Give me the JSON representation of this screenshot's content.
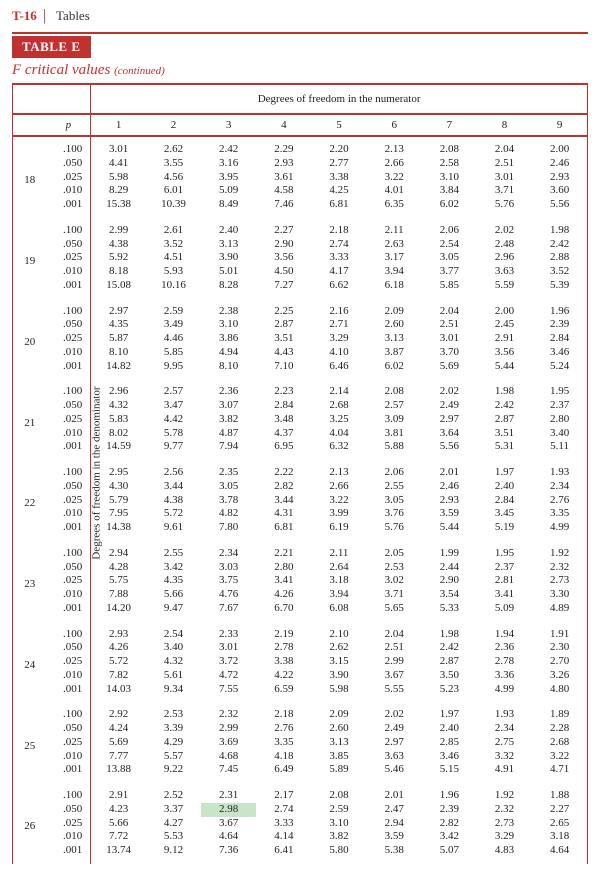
{
  "header": {
    "page_code": "T-16",
    "section": "Tables"
  },
  "table": {
    "pill": "TABLE E",
    "subtitle_main": "F critical values",
    "subtitle_cont": "(continued)",
    "numerator_label": "Degrees of freedom in the numerator",
    "denominator_label": "Degrees of freedom in the denominator",
    "p_header": "p",
    "num_cols": [
      "1",
      "2",
      "3",
      "4",
      "5",
      "6",
      "7",
      "8",
      "9"
    ],
    "p_levels": [
      ".100",
      ".050",
      ".025",
      ".010",
      ".001"
    ],
    "highlight": {
      "block_index": 8,
      "p_index": 1,
      "col_index": 2
    },
    "colors": {
      "accent": "#c0322f",
      "highlight": "#c7e6c9",
      "text": "#222222",
      "background": "#ffffff"
    },
    "blocks": [
      {
        "df_denom": "18",
        "rows": [
          [
            "3.01",
            "2.62",
            "2.42",
            "2.29",
            "2.20",
            "2.13",
            "2.08",
            "2.04",
            "2.00"
          ],
          [
            "4.41",
            "3.55",
            "3.16",
            "2.93",
            "2.77",
            "2.66",
            "2.58",
            "2.51",
            "2.46"
          ],
          [
            "5.98",
            "4.56",
            "3.95",
            "3.61",
            "3.38",
            "3.22",
            "3.10",
            "3.01",
            "2.93"
          ],
          [
            "8.29",
            "6.01",
            "5.09",
            "4.58",
            "4.25",
            "4.01",
            "3.84",
            "3.71",
            "3.60"
          ],
          [
            "15.38",
            "10.39",
            "8.49",
            "7.46",
            "6.81",
            "6.35",
            "6.02",
            "5.76",
            "5.56"
          ]
        ]
      },
      {
        "df_denom": "19",
        "rows": [
          [
            "2.99",
            "2.61",
            "2.40",
            "2.27",
            "2.18",
            "2.11",
            "2.06",
            "2.02",
            "1.98"
          ],
          [
            "4.38",
            "3.52",
            "3.13",
            "2.90",
            "2.74",
            "2.63",
            "2.54",
            "2.48",
            "2.42"
          ],
          [
            "5.92",
            "4.51",
            "3.90",
            "3.56",
            "3.33",
            "3.17",
            "3.05",
            "2.96",
            "2.88"
          ],
          [
            "8.18",
            "5.93",
            "5.01",
            "4.50",
            "4.17",
            "3.94",
            "3.77",
            "3.63",
            "3.52"
          ],
          [
            "15.08",
            "10.16",
            "8.28",
            "7.27",
            "6.62",
            "6.18",
            "5.85",
            "5.59",
            "5.39"
          ]
        ]
      },
      {
        "df_denom": "20",
        "rows": [
          [
            "2.97",
            "2.59",
            "2.38",
            "2.25",
            "2.16",
            "2.09",
            "2.04",
            "2.00",
            "1.96"
          ],
          [
            "4.35",
            "3.49",
            "3.10",
            "2.87",
            "2.71",
            "2.60",
            "2.51",
            "2.45",
            "2.39"
          ],
          [
            "5.87",
            "4.46",
            "3.86",
            "3.51",
            "3.29",
            "3.13",
            "3.01",
            "2.91",
            "2.84"
          ],
          [
            "8.10",
            "5.85",
            "4.94",
            "4.43",
            "4.10",
            "3.87",
            "3.70",
            "3.56",
            "3.46"
          ],
          [
            "14.82",
            "9.95",
            "8.10",
            "7.10",
            "6.46",
            "6.02",
            "5.69",
            "5.44",
            "5.24"
          ]
        ]
      },
      {
        "df_denom": "21",
        "rows": [
          [
            "2.96",
            "2.57",
            "2.36",
            "2.23",
            "2.14",
            "2.08",
            "2.02",
            "1.98",
            "1.95"
          ],
          [
            "4.32",
            "3.47",
            "3.07",
            "2.84",
            "2.68",
            "2.57",
            "2.49",
            "2.42",
            "2.37"
          ],
          [
            "5.83",
            "4.42",
            "3.82",
            "3.48",
            "3.25",
            "3.09",
            "2.97",
            "2.87",
            "2.80"
          ],
          [
            "8.02",
            "5.78",
            "4.87",
            "4.37",
            "4.04",
            "3.81",
            "3.64",
            "3.51",
            "3.40"
          ],
          [
            "14.59",
            "9.77",
            "7.94",
            "6.95",
            "6.32",
            "5.88",
            "5.56",
            "5.31",
            "5.11"
          ]
        ]
      },
      {
        "df_denom": "22",
        "rows": [
          [
            "2.95",
            "2.56",
            "2.35",
            "2.22",
            "2.13",
            "2.06",
            "2.01",
            "1.97",
            "1.93"
          ],
          [
            "4.30",
            "3.44",
            "3.05",
            "2.82",
            "2.66",
            "2.55",
            "2.46",
            "2.40",
            "2.34"
          ],
          [
            "5.79",
            "4.38",
            "3.78",
            "3.44",
            "3.22",
            "3.05",
            "2.93",
            "2.84",
            "2.76"
          ],
          [
            "7.95",
            "5.72",
            "4.82",
            "4.31",
            "3.99",
            "3.76",
            "3.59",
            "3.45",
            "3.35"
          ],
          [
            "14.38",
            "9.61",
            "7.80",
            "6.81",
            "6.19",
            "5.76",
            "5.44",
            "5.19",
            "4.99"
          ]
        ]
      },
      {
        "df_denom": "23",
        "rows": [
          [
            "2.94",
            "2.55",
            "2.34",
            "2.21",
            "2.11",
            "2.05",
            "1.99",
            "1.95",
            "1.92"
          ],
          [
            "4.28",
            "3.42",
            "3.03",
            "2.80",
            "2.64",
            "2.53",
            "2.44",
            "2.37",
            "2.32"
          ],
          [
            "5.75",
            "4.35",
            "3.75",
            "3.41",
            "3.18",
            "3.02",
            "2.90",
            "2.81",
            "2.73"
          ],
          [
            "7.88",
            "5.66",
            "4.76",
            "4.26",
            "3.94",
            "3.71",
            "3.54",
            "3.41",
            "3.30"
          ],
          [
            "14.20",
            "9.47",
            "7.67",
            "6.70",
            "6.08",
            "5.65",
            "5.33",
            "5.09",
            "4.89"
          ]
        ]
      },
      {
        "df_denom": "24",
        "rows": [
          [
            "2.93",
            "2.54",
            "2.33",
            "2.19",
            "2.10",
            "2.04",
            "1.98",
            "1.94",
            "1.91"
          ],
          [
            "4.26",
            "3.40",
            "3.01",
            "2.78",
            "2.62",
            "2.51",
            "2.42",
            "2.36",
            "2.30"
          ],
          [
            "5.72",
            "4.32",
            "3.72",
            "3.38",
            "3.15",
            "2.99",
            "2.87",
            "2.78",
            "2.70"
          ],
          [
            "7.82",
            "5.61",
            "4.72",
            "4.22",
            "3.90",
            "3.67",
            "3.50",
            "3.36",
            "3.26"
          ],
          [
            "14.03",
            "9.34",
            "7.55",
            "6.59",
            "5.98",
            "5.55",
            "5.23",
            "4.99",
            "4.80"
          ]
        ]
      },
      {
        "df_denom": "25",
        "rows": [
          [
            "2.92",
            "2.53",
            "2.32",
            "2.18",
            "2.09",
            "2.02",
            "1.97",
            "1.93",
            "1.89"
          ],
          [
            "4.24",
            "3.39",
            "2.99",
            "2.76",
            "2.60",
            "2.49",
            "2.40",
            "2.34",
            "2.28"
          ],
          [
            "5.69",
            "4.29",
            "3.69",
            "3.35",
            "3.13",
            "2.97",
            "2.85",
            "2.75",
            "2.68"
          ],
          [
            "7.77",
            "5.57",
            "4.68",
            "4.18",
            "3.85",
            "3.63",
            "3.46",
            "3.32",
            "3.22"
          ],
          [
            "13.88",
            "9.22",
            "7.45",
            "6.49",
            "5.89",
            "5.46",
            "5.15",
            "4.91",
            "4.71"
          ]
        ]
      },
      {
        "df_denom": "26",
        "rows": [
          [
            "2.91",
            "2.52",
            "2.31",
            "2.17",
            "2.08",
            "2.01",
            "1.96",
            "1.92",
            "1.88"
          ],
          [
            "4.23",
            "3.37",
            "2.98",
            "2.74",
            "2.59",
            "2.47",
            "2.39",
            "2.32",
            "2.27"
          ],
          [
            "5.66",
            "4.27",
            "3.67",
            "3.33",
            "3.10",
            "2.94",
            "2.82",
            "2.73",
            "2.65"
          ],
          [
            "7.72",
            "5.53",
            "4.64",
            "4.14",
            "3.82",
            "3.59",
            "3.42",
            "3.29",
            "3.18"
          ],
          [
            "13.74",
            "9.12",
            "7.36",
            "6.41",
            "5.80",
            "5.38",
            "5.07",
            "4.83",
            "4.64"
          ]
        ]
      }
    ]
  }
}
